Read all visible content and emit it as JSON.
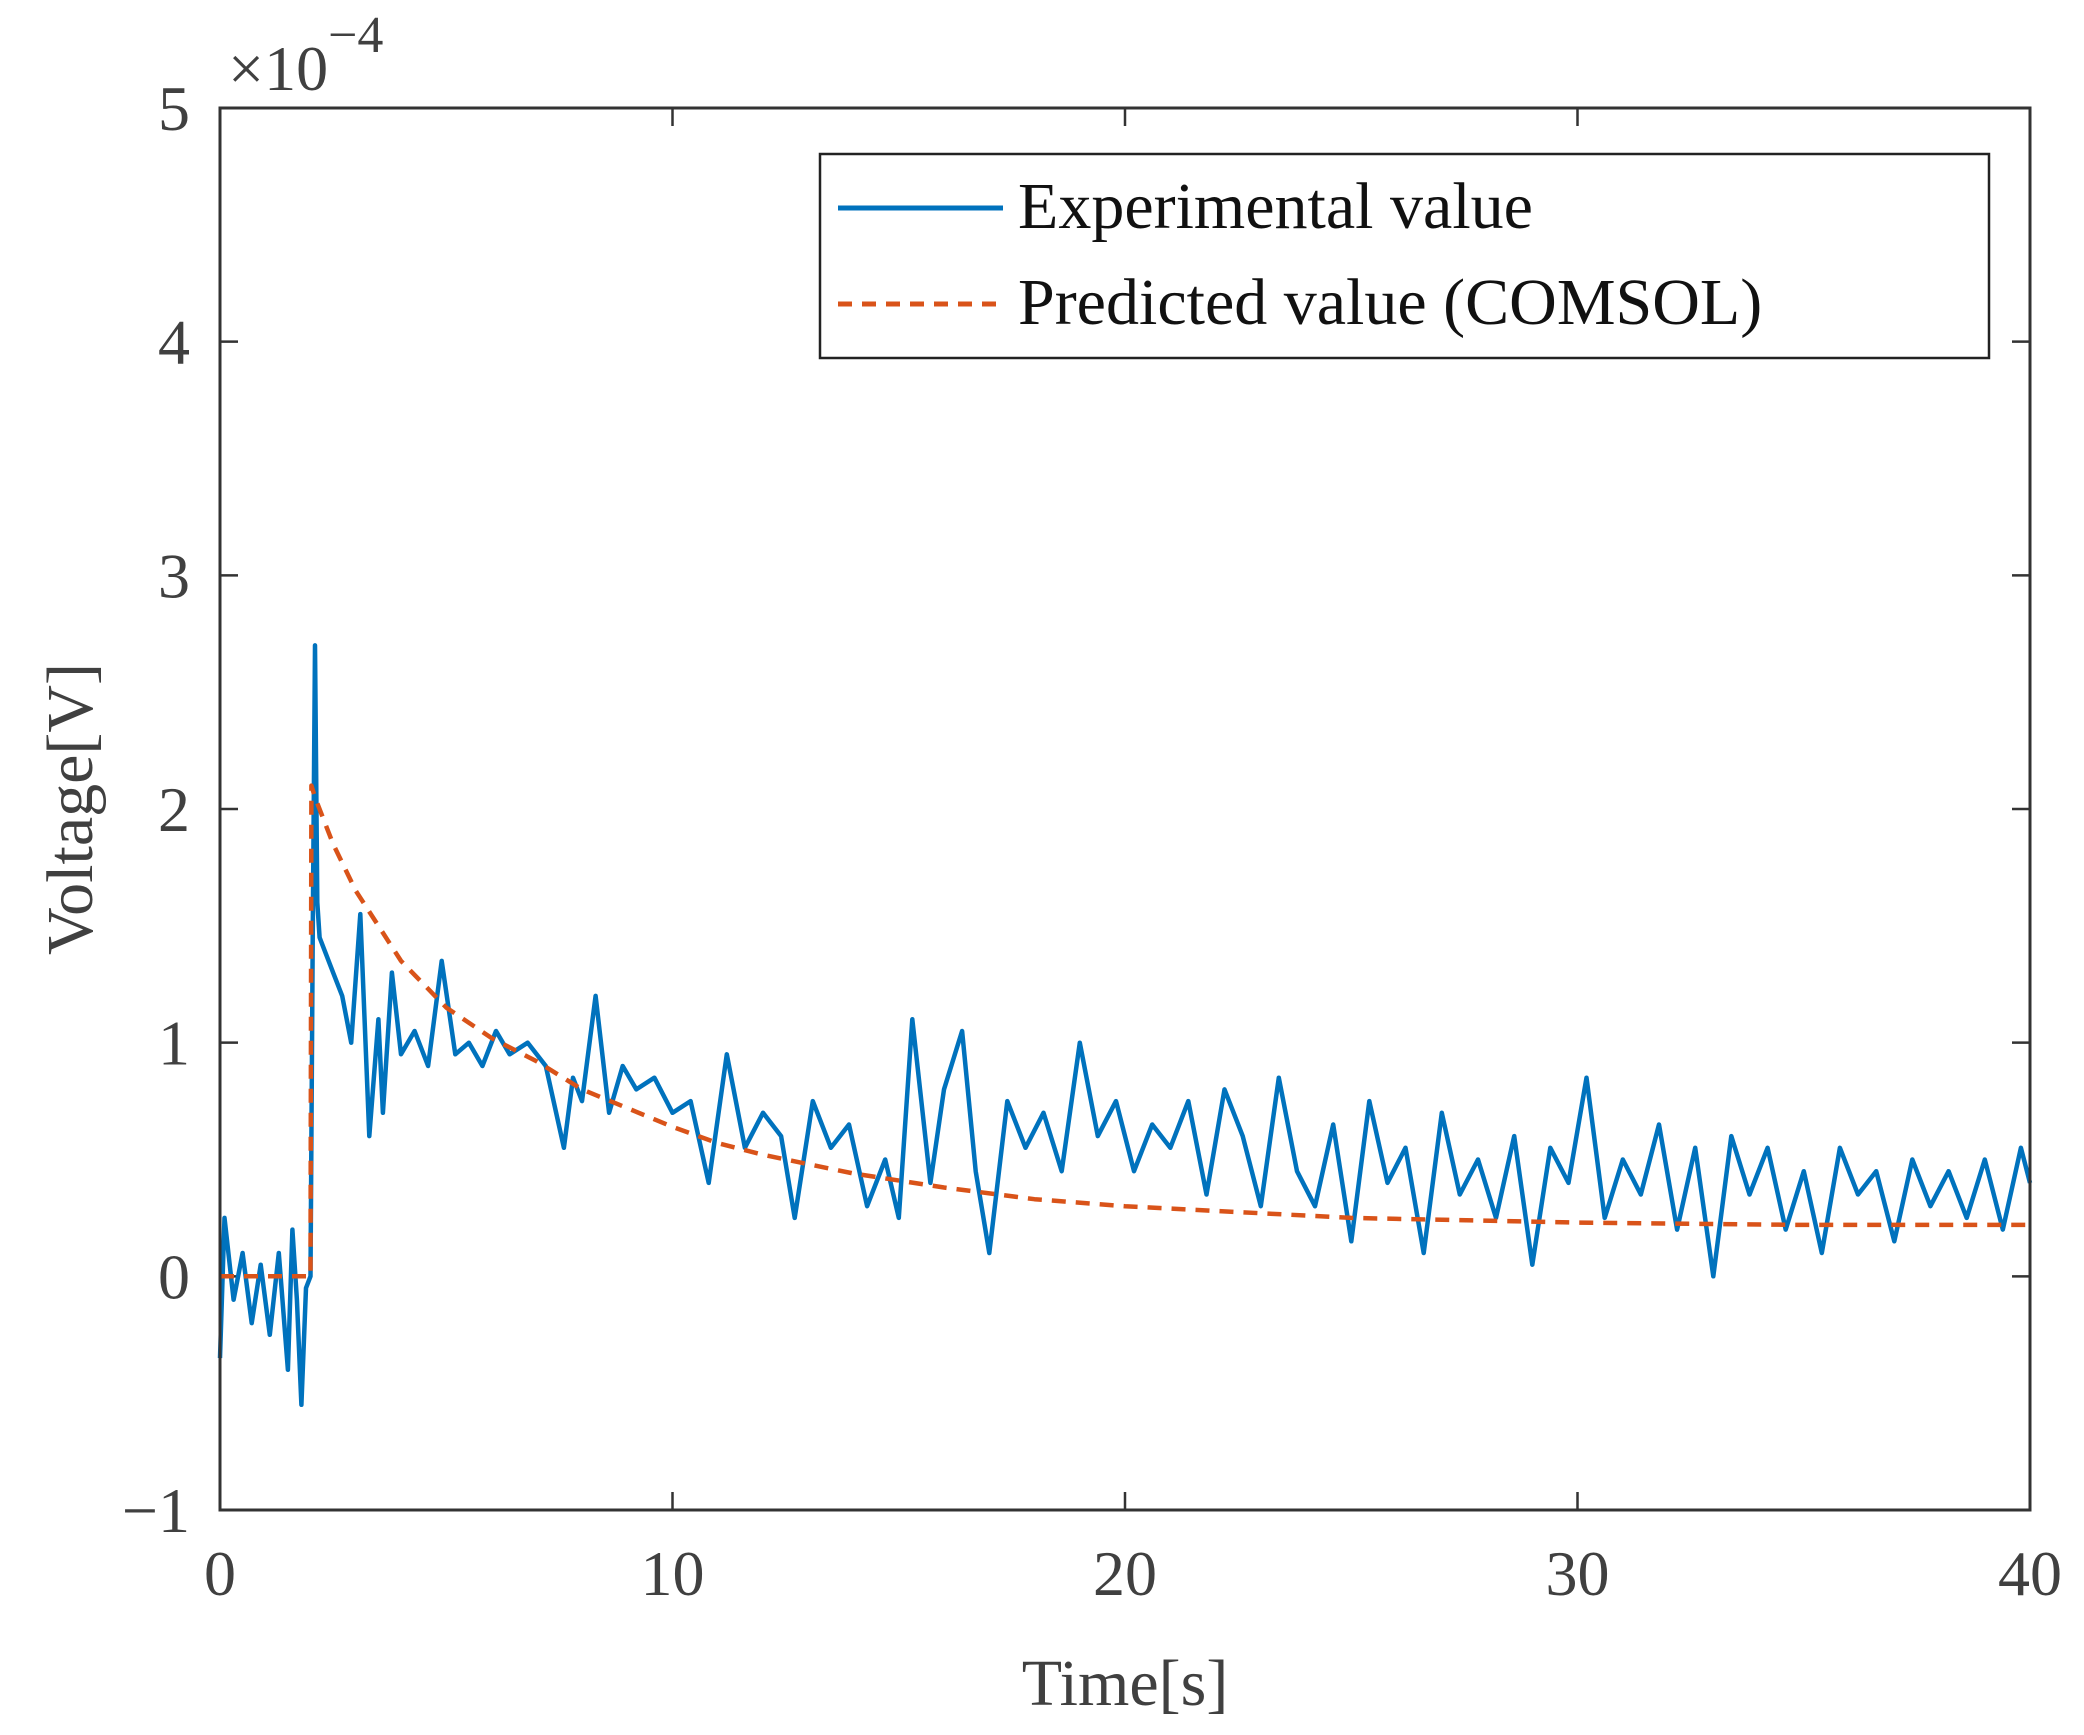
{
  "chart_data": {
    "type": "line",
    "title": "",
    "xlabel": "Time[s]",
    "ylabel": "Voltage[V]",
    "y_exponent_label": "×10",
    "y_exponent_power": "−4",
    "xlim": [
      0,
      40
    ],
    "ylim": [
      -1,
      5
    ],
    "y_scale": 0.0001,
    "xticks": [
      0,
      10,
      20,
      30,
      40
    ],
    "xtick_labels": [
      "0",
      "10",
      "20",
      "30",
      "40"
    ],
    "yticks": [
      -1,
      0,
      1,
      2,
      3,
      4,
      5
    ],
    "ytick_labels": [
      "−1",
      "0",
      "1",
      "2",
      "3",
      "4",
      "5"
    ],
    "grid": false,
    "legend_position": "top-right",
    "series": [
      {
        "name": "Experimental value",
        "color": "#0072BD",
        "style": "solid",
        "x": [
          0,
          0.1,
          0.3,
          0.5,
          0.7,
          0.9,
          1.1,
          1.3,
          1.5,
          1.6,
          1.7,
          1.8,
          1.9,
          2.0,
          2.05,
          2.1,
          2.15,
          2.2,
          2.3,
          2.5,
          2.7,
          2.9,
          3.1,
          3.3,
          3.5,
          3.6,
          3.8,
          4.0,
          4.3,
          4.6,
          4.9,
          5.2,
          5.5,
          5.8,
          6.1,
          6.4,
          6.8,
          7.2,
          7.6,
          7.8,
          8.0,
          8.3,
          8.6,
          8.9,
          9.2,
          9.6,
          10.0,
          10.4,
          10.8,
          11.2,
          11.6,
          12.0,
          12.4,
          12.7,
          13.1,
          13.5,
          13.9,
          14.3,
          14.7,
          15.0,
          15.3,
          15.7,
          16.0,
          16.4,
          16.7,
          17.0,
          17.4,
          17.8,
          18.2,
          18.6,
          19.0,
          19.4,
          19.8,
          20.2,
          20.6,
          21.0,
          21.4,
          21.8,
          22.2,
          22.6,
          23.0,
          23.4,
          23.8,
          24.2,
          24.6,
          25.0,
          25.4,
          25.8,
          26.2,
          26.6,
          27.0,
          27.4,
          27.8,
          28.2,
          28.6,
          29.0,
          29.4,
          29.8,
          30.2,
          30.6,
          31.0,
          31.4,
          31.8,
          32.2,
          32.6,
          33.0,
          33.4,
          33.8,
          34.2,
          34.6,
          35.0,
          35.4,
          35.8,
          36.2,
          36.6,
          37.0,
          37.4,
          37.8,
          38.2,
          38.6,
          39.0,
          39.4,
          39.8,
          40.0
        ],
        "y": [
          -0.35,
          0.25,
          -0.1,
          0.1,
          -0.2,
          0.05,
          -0.25,
          0.1,
          -0.4,
          0.2,
          -0.1,
          -0.55,
          -0.05,
          0.0,
          1.5,
          2.7,
          1.6,
          1.45,
          1.4,
          1.3,
          1.2,
          1.0,
          1.55,
          0.6,
          1.1,
          0.7,
          1.3,
          0.95,
          1.05,
          0.9,
          1.35,
          0.95,
          1.0,
          0.9,
          1.05,
          0.95,
          1.0,
          0.9,
          0.55,
          0.85,
          0.75,
          1.2,
          0.7,
          0.9,
          0.8,
          0.85,
          0.7,
          0.75,
          0.4,
          0.95,
          0.55,
          0.7,
          0.6,
          0.25,
          0.75,
          0.55,
          0.65,
          0.3,
          0.5,
          0.25,
          1.1,
          0.4,
          0.8,
          1.05,
          0.45,
          0.1,
          0.75,
          0.55,
          0.7,
          0.45,
          1.0,
          0.6,
          0.75,
          0.45,
          0.65,
          0.55,
          0.75,
          0.35,
          0.8,
          0.6,
          0.3,
          0.85,
          0.45,
          0.3,
          0.65,
          0.15,
          0.75,
          0.4,
          0.55,
          0.1,
          0.7,
          0.35,
          0.5,
          0.25,
          0.6,
          0.05,
          0.55,
          0.4,
          0.85,
          0.25,
          0.5,
          0.35,
          0.65,
          0.2,
          0.55,
          0.0,
          0.6,
          0.35,
          0.55,
          0.2,
          0.45,
          0.1,
          0.55,
          0.35,
          0.45,
          0.15,
          0.5,
          0.3,
          0.45,
          0.25,
          0.5,
          0.2,
          0.55,
          0.4
        ]
      },
      {
        "name": "Predicted value (COMSOL)",
        "color": "#D95319",
        "style": "dashed",
        "x": [
          0,
          2.0,
          2.02,
          2.1,
          2.5,
          3,
          3.5,
          4,
          5,
          6,
          7,
          8,
          9,
          10,
          11,
          12,
          14,
          16,
          18,
          20,
          22,
          25,
          30,
          35,
          40
        ],
        "y": [
          0,
          0,
          2.1,
          2.05,
          1.85,
          1.65,
          1.5,
          1.35,
          1.15,
          1.02,
          0.92,
          0.8,
          0.72,
          0.64,
          0.57,
          0.52,
          0.44,
          0.38,
          0.33,
          0.3,
          0.28,
          0.25,
          0.23,
          0.22,
          0.22
        ]
      }
    ]
  }
}
